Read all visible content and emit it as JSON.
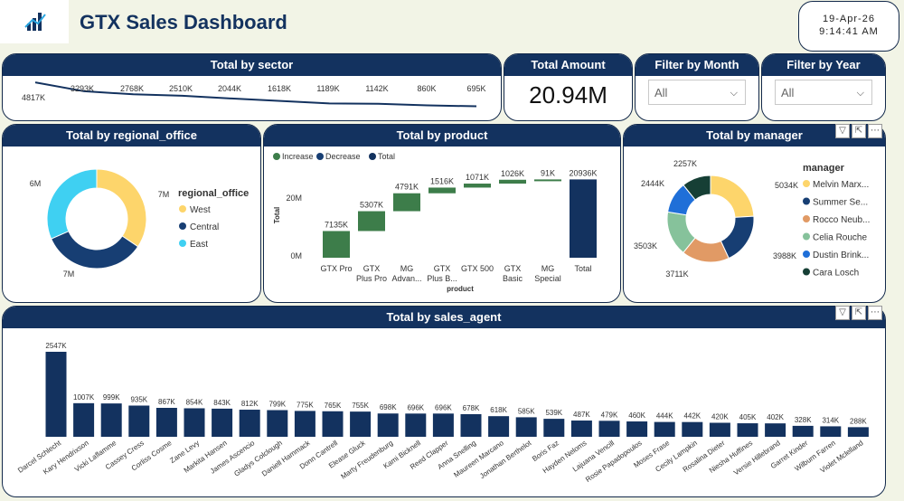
{
  "header": {
    "title": "GTX Sales Dashboard",
    "logo": "bar-chart-logo"
  },
  "clock": {
    "date": "19-Apr-26",
    "time": "9:14:41 AM"
  },
  "sector": {
    "title": "Total by sector",
    "labels": [
      "4817K",
      "3293K",
      "2768K",
      "2510K",
      "2044K",
      "1618K",
      "1189K",
      "1142K",
      "860K",
      "695K"
    ],
    "values": [
      4817,
      3293,
      2768,
      2510,
      2044,
      1618,
      1189,
      1142,
      860,
      695
    ]
  },
  "kpi": {
    "title": "Total Amount",
    "value": "20.94M"
  },
  "filter_month": {
    "title": "Filter by Month",
    "selected": "All"
  },
  "filter_year": {
    "title": "Filter by Year",
    "selected": "All"
  },
  "regional": {
    "title": "Total by regional_office",
    "legend_title": "regional_office",
    "items": [
      {
        "name": "West",
        "label": "7M",
        "value": 7.2,
        "color": "#fdd56b"
      },
      {
        "name": "Central",
        "label": "7M",
        "value": 7.1,
        "color": "#173e73"
      },
      {
        "name": "East",
        "label": "6M",
        "value": 6.6,
        "color": "#3fd0f2"
      }
    ]
  },
  "product": {
    "title": "Total by product",
    "legend": [
      {
        "name": "Increase",
        "color": "#3d7d4a"
      },
      {
        "name": "Decrease",
        "color": "#173e73"
      },
      {
        "name": "Total",
        "color": "#13325f"
      }
    ],
    "y_label": "Total",
    "x_label": "product",
    "y_ticks": [
      "20M",
      "0M"
    ],
    "categories": [
      "GTX Pro",
      "GTX Plus Pro",
      "MG Advan...",
      "GTX Plus B...",
      "GTX 500",
      "GTX Basic",
      "MG Special",
      "Total"
    ],
    "values": [
      7135,
      5307,
      4791,
      1516,
      1071,
      1026,
      91,
      20936
    ],
    "labels": [
      "7135K",
      "5307K",
      "4791K",
      "1516K",
      "1071K",
      "1026K",
      "91K",
      "20936K"
    ]
  },
  "manager": {
    "title": "Total by manager",
    "legend_title": "manager",
    "items": [
      {
        "name": "Melvin Marx...",
        "label": "5034K",
        "value": 5034,
        "color": "#fdd56b"
      },
      {
        "name": "Summer Se...",
        "label": "3988K",
        "value": 3988,
        "color": "#173e73"
      },
      {
        "name": "Rocco Neub...",
        "label": "3711K",
        "value": 3711,
        "color": "#e19a65"
      },
      {
        "name": "Celia Rouche",
        "label": "3503K",
        "value": 3503,
        "color": "#86c29b"
      },
      {
        "name": "Dustin Brink...",
        "label": "2444K",
        "value": 2444,
        "color": "#1f6fd8"
      },
      {
        "name": "Cara Losch",
        "label": "2257K",
        "value": 2257,
        "color": "#163f35"
      }
    ]
  },
  "agents": {
    "title": "Total by sales_agent",
    "names": [
      "Darcel Schlecht",
      "Kary Hendrixson",
      "Vicki Laflamme",
      "Cassey Cress",
      "Corliss Cosme",
      "Zane Levy",
      "Markita Hansen",
      "James Ascencio",
      "Gladys Colclough",
      "Daniell Hammack",
      "Donn Cantrell",
      "Elease Gluck",
      "Marty Freudenburg",
      "Kami Bicknell",
      "Reed Clapper",
      "Anna Snelling",
      "Maureen Marcano",
      "Jonathan Berthelot",
      "Boris Faz",
      "Hayden Neloms",
      "Lajuana Vencill",
      "Rosie Papadopoulos",
      "Moses Frase",
      "Cecily Lampkin",
      "Rosalina Dieter",
      "Niesha Huffines",
      "Versie Hillebrand",
      "Garret Kinder",
      "Wilburn Farren",
      "Violet Mclelland"
    ],
    "values": [
      2547,
      1007,
      999,
      935,
      867,
      854,
      843,
      812,
      799,
      775,
      765,
      755,
      698,
      696,
      696,
      678,
      618,
      585,
      539,
      487,
      479,
      460,
      444,
      442,
      420,
      405,
      402,
      328,
      314,
      288
    ],
    "labels": [
      "2547K",
      "1007K",
      "999K",
      "935K",
      "867K",
      "854K",
      "843K",
      "812K",
      "799K",
      "775K",
      "765K",
      "755K",
      "698K",
      "696K",
      "696K",
      "678K",
      "618K",
      "585K",
      "539K",
      "487K",
      "479K",
      "460K",
      "444K",
      "442K",
      "420K",
      "405K",
      "402K",
      "328K",
      "314K",
      "288K"
    ]
  }
}
